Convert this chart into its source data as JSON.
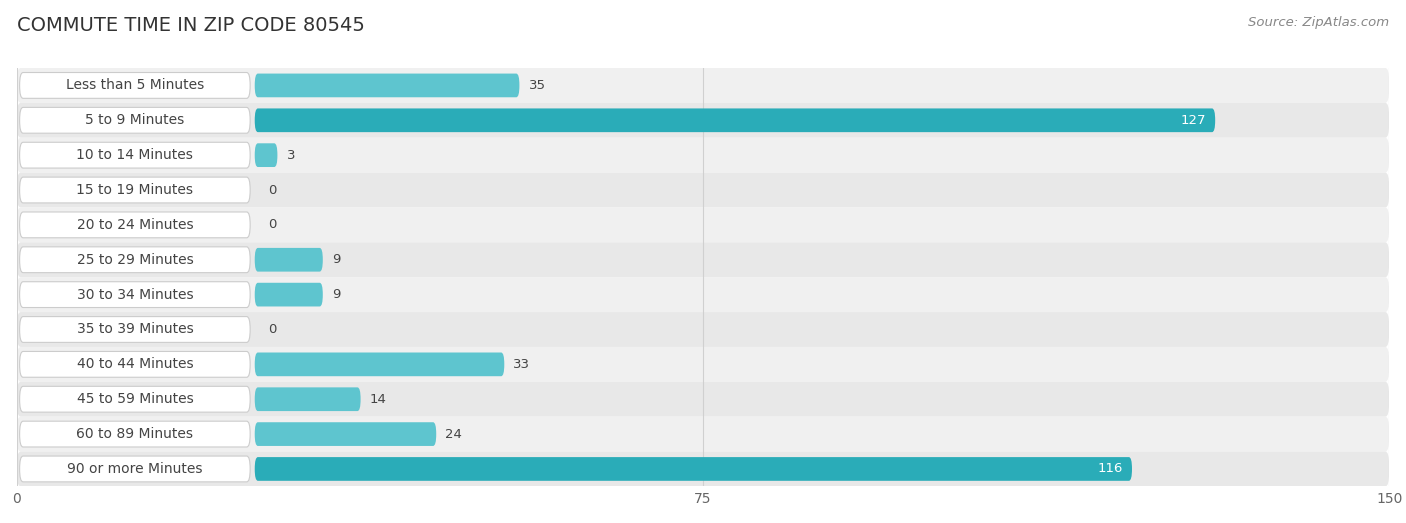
{
  "title": "COMMUTE TIME IN ZIP CODE 80545",
  "source": "Source: ZipAtlas.com",
  "categories": [
    "Less than 5 Minutes",
    "5 to 9 Minutes",
    "10 to 14 Minutes",
    "15 to 19 Minutes",
    "20 to 24 Minutes",
    "25 to 29 Minutes",
    "30 to 34 Minutes",
    "35 to 39 Minutes",
    "40 to 44 Minutes",
    "45 to 59 Minutes",
    "60 to 89 Minutes",
    "90 or more Minutes"
  ],
  "values": [
    35,
    127,
    3,
    0,
    0,
    9,
    9,
    0,
    33,
    14,
    24,
    116
  ],
  "xlim": [
    0,
    150
  ],
  "xticks": [
    0,
    75,
    150
  ],
  "bar_color_light": "#5ec5cf",
  "bar_color_dark": "#2aacb8",
  "label_color": "#444444",
  "title_color": "#333333",
  "title_fontsize": 14,
  "label_fontsize": 10,
  "value_fontsize": 9.5,
  "source_fontsize": 9.5,
  "row_colors": [
    "#f0f0f0",
    "#e8e8e8"
  ],
  "label_bg_color": "#ffffff",
  "label_border_color": "#cccccc",
  "grid_color": "#d0d0d0"
}
